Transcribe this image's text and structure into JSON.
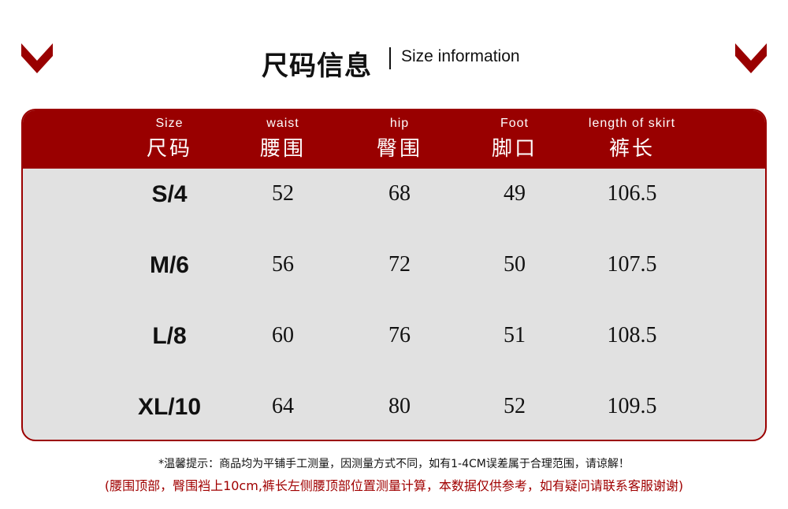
{
  "colors": {
    "accent": "#990000",
    "table_bg": "#e1e1e1",
    "text": "#111111"
  },
  "icons": {
    "left": "chevron-down-icon",
    "right": "chevron-down-icon"
  },
  "title": {
    "cn": "尺码信息",
    "en": "Size information"
  },
  "table": {
    "headers": [
      {
        "en": "Size",
        "cn": "尺码"
      },
      {
        "en": "waist",
        "cn": "腰围"
      },
      {
        "en": "hip",
        "cn": "臀围"
      },
      {
        "en": "Foot",
        "cn": "脚口"
      },
      {
        "en": "length of skirt",
        "cn": "裤长"
      }
    ],
    "rows": [
      [
        "S/4",
        "52",
        "68",
        "49",
        "106.5"
      ],
      [
        "M/6",
        "56",
        "72",
        "50",
        "107.5"
      ],
      [
        "L/8",
        "60",
        "76",
        "51",
        "108.5"
      ],
      [
        "XL/10",
        "64",
        "80",
        "52",
        "109.5"
      ]
    ]
  },
  "notes": {
    "tip": "*温馨提示：商品均为平铺手工测量，因测量方式不同，如有1-4CM误差属于合理范围，请谅解！",
    "detail": "(腰围顶部，臀围裆上10cm,裤长左侧腰顶部位置测量计算，本数据仅供参考，如有疑问请联系客服谢谢)"
  }
}
